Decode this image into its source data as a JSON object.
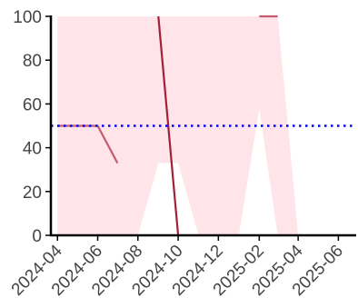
{
  "chart_data": {
    "type": "line",
    "x_type": "date",
    "xlim": [
      "2024-03-22",
      "2025-06-28"
    ],
    "ylim": [
      0,
      100
    ],
    "grid": false,
    "x_ticks": [
      "2024-04",
      "2024-06",
      "2024-08",
      "2024-10",
      "2024-12",
      "2025-02",
      "2025-04",
      "2025-06"
    ],
    "y_ticks": [
      0,
      20,
      40,
      60,
      80,
      100
    ],
    "band": {
      "color": "#ffe4e9",
      "points": [
        {
          "x": "2024-04-01",
          "lower": 0,
          "upper": 100
        },
        {
          "x": "2024-05-01",
          "lower": 0,
          "upper": 100
        },
        {
          "x": "2024-06-01",
          "lower": 0,
          "upper": 100
        },
        {
          "x": "2024-07-01",
          "lower": 0,
          "upper": 100
        },
        {
          "x": "2024-08-01",
          "lower": 0,
          "upper": 100
        },
        {
          "x": "2024-09-01",
          "lower": 33,
          "upper": 100
        },
        {
          "x": "2024-10-01",
          "lower": 33,
          "upper": 100
        },
        {
          "x": "2024-11-01",
          "lower": 0,
          "upper": 100
        },
        {
          "x": "2024-12-01",
          "lower": 0,
          "upper": 100
        },
        {
          "x": "2025-01-01",
          "lower": 0,
          "upper": 100
        },
        {
          "x": "2025-02-01",
          "lower": 58,
          "upper": 100
        },
        {
          "x": "2025-03-01",
          "lower": 0,
          "upper": 100
        },
        {
          "x": "2025-04-01",
          "lower": 0,
          "upper": 0
        }
      ]
    },
    "series": [
      {
        "color": "#c45c6e",
        "width": 2.2,
        "points": [
          [
            "2024-04-01",
            50
          ],
          [
            "2024-05-01",
            50
          ],
          [
            "2024-06-01",
            50
          ],
          [
            "2024-07-01",
            33
          ]
        ]
      },
      {
        "color": "#a3203a",
        "width": 2.2,
        "points": [
          [
            "2024-09-01",
            100
          ],
          [
            "2024-10-01",
            0
          ]
        ]
      },
      {
        "color": "#c45c6e",
        "width": 2.2,
        "points": [
          [
            "2025-02-01",
            100
          ],
          [
            "2025-03-01",
            100
          ]
        ]
      }
    ],
    "reference_line": {
      "y": 50,
      "color": "#0000ff",
      "style": "dotted"
    }
  }
}
